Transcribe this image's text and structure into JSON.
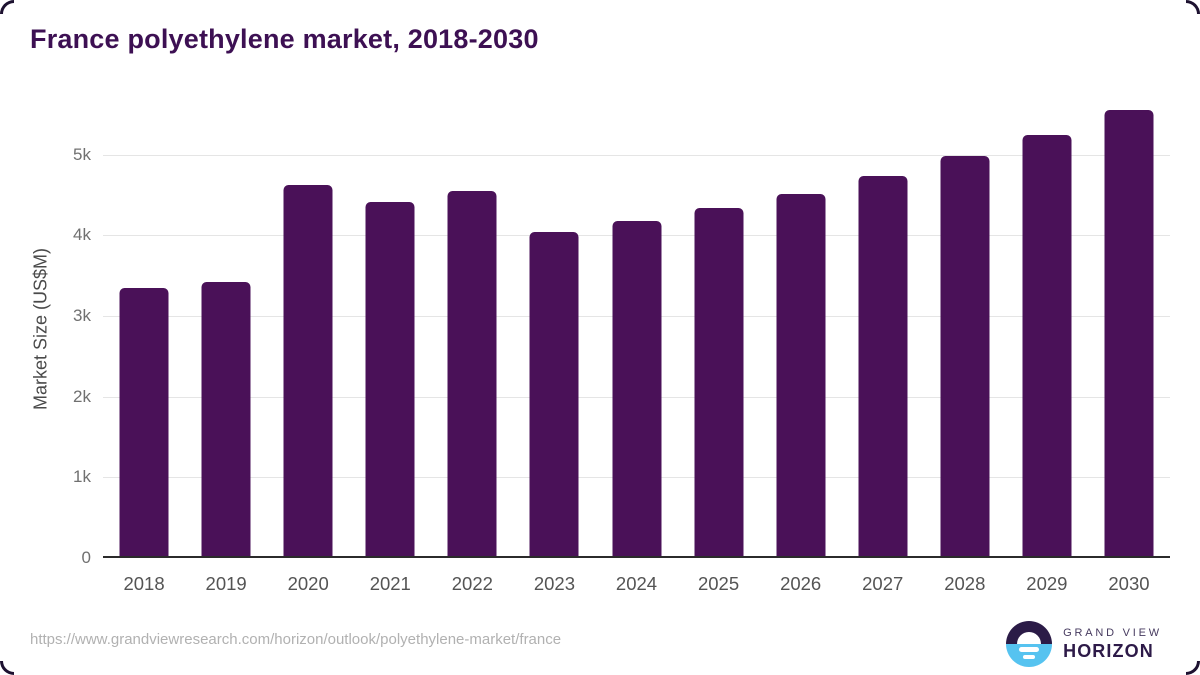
{
  "title": "France polyethylene market, 2018-2030",
  "chart_data": {
    "type": "bar",
    "title": "France polyethylene market, 2018-2030",
    "categories": [
      "2018",
      "2019",
      "2020",
      "2021",
      "2022",
      "2023",
      "2024",
      "2025",
      "2026",
      "2027",
      "2028",
      "2029",
      "2030"
    ],
    "values": [
      3330,
      3400,
      4600,
      4390,
      4530,
      4020,
      4150,
      4310,
      4490,
      4710,
      4960,
      5220,
      5530
    ],
    "unit": "US$M",
    "xlabel": "",
    "ylabel": "Market Size (US$M)",
    "ylim": [
      0,
      5680
    ],
    "yticks": [
      {
        "label": "0",
        "value": 0
      },
      {
        "label": "1k",
        "value": 1000
      },
      {
        "label": "2k",
        "value": 2000
      },
      {
        "label": "3k",
        "value": 3000
      },
      {
        "label": "4k",
        "value": 4000
      },
      {
        "label": "5k",
        "value": 5000
      }
    ],
    "grid": "horizontal",
    "legend": "none"
  },
  "colors": {
    "bar": "#4a1158",
    "title_text": "#3d1053",
    "gridline": "#e5e5e5",
    "axis_line": "#2b2b2b",
    "y_tick_text": "#707070",
    "x_label_text": "#545454",
    "logo_purple": "#2b1b47",
    "logo_blue": "#56c3f0"
  },
  "footer": {
    "source_url": "https://www.grandviewresearch.com/horizon/outlook/polyethylene-market/france",
    "logo": {
      "line1": "GRAND VIEW",
      "line2": "HORIZON"
    }
  }
}
